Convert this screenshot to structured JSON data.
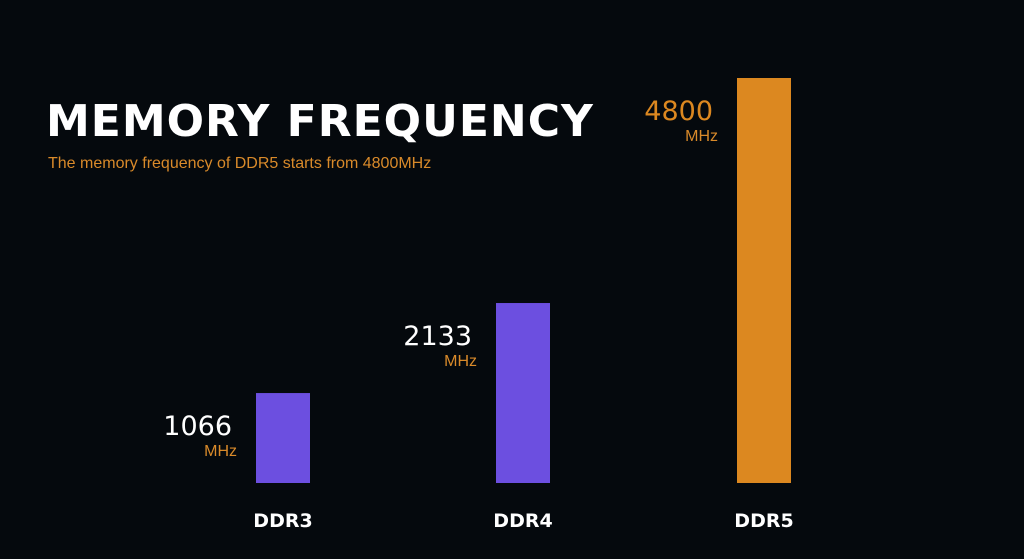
{
  "chart_data": {
    "type": "bar",
    "title": "MEMORY FREQUENCY",
    "subtitle": "The memory frequency of DDR5 starts from 4800MHz",
    "xlabel": "",
    "ylabel": "",
    "unit": "MHz",
    "categories": [
      "DDR3",
      "DDR4",
      "DDR5"
    ],
    "values": [
      1066,
      2133,
      4800
    ],
    "value_labels": [
      "1066",
      "2133",
      "4800"
    ],
    "bar_colors": [
      "#6c4fe0",
      "#6c4fe0",
      "#dc8820"
    ],
    "value_label_colors": [
      "#ffffff",
      "#ffffff",
      "#dc8820"
    ],
    "unit_color": "#d98a2a",
    "category_label_color": "#ffffff",
    "background": "#05090d",
    "grid": false,
    "ylim": [
      0,
      4800
    ]
  }
}
